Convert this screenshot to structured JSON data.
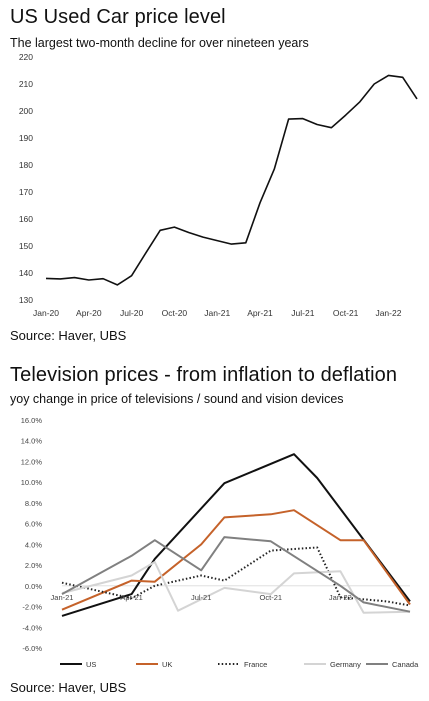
{
  "chart_data": [
    {
      "type": "line",
      "title": "US Used Car price level",
      "subtitle": "The largest two-month decline for over nineteen years",
      "source": "Source: Haver, UBS",
      "x_tick_labels": [
        "Jan-20",
        "Apr-20",
        "Jul-20",
        "Oct-20",
        "Jan-21",
        "Apr-21",
        "Jul-21",
        "Oct-21",
        "Jan-22"
      ],
      "y_tick_labels": [
        "130",
        "140",
        "150",
        "160",
        "170",
        "180",
        "190",
        "200",
        "210",
        "220"
      ],
      "ylim": [
        130,
        220
      ],
      "grid": false,
      "x": [
        "2020-01",
        "2020-02",
        "2020-03",
        "2020-04",
        "2020-05",
        "2020-06",
        "2020-07",
        "2020-08",
        "2020-09",
        "2020-10",
        "2020-11",
        "2020-12",
        "2021-01",
        "2021-02",
        "2021-03",
        "2021-04",
        "2021-05",
        "2021-06",
        "2021-07",
        "2021-08",
        "2021-09",
        "2021-10",
        "2021-11",
        "2021-12",
        "2022-01",
        "2022-02",
        "2022-03"
      ],
      "series": [
        {
          "color": "#111111",
          "values": [
            138.0,
            137.8,
            138.3,
            137.4,
            137.9,
            135.6,
            139.0,
            147.5,
            155.8,
            157.0,
            155.0,
            153.3,
            152.0,
            150.7,
            151.2,
            166.0,
            178.5,
            197.0,
            197.2,
            195.0,
            193.8,
            198.5,
            203.4,
            210.0,
            213.2,
            212.5,
            204.5
          ]
        }
      ]
    },
    {
      "type": "line",
      "title": "Television prices - from inflation to deflation",
      "subtitle": "yoy change in price of televisions / sound and vision devices",
      "source": "Source: Haver, UBS",
      "x_tick_labels": [
        "Jan-21",
        "Apr-21",
        "Jul-21",
        "Oct-21",
        "Jan-22"
      ],
      "y_tick_labels": [
        "-6.0%",
        "-4.0%",
        "-2.0%",
        "0.0%",
        "2.0%",
        "4.0%",
        "6.0%",
        "8.0%",
        "10.0%",
        "12.0%",
        "14.0%",
        "16.0%"
      ],
      "ylim": [
        -6,
        16
      ],
      "grid": false,
      "legend_position": "bottom",
      "x": [
        "2021-01",
        "2021-02",
        "2021-03",
        "2021-04",
        "2021-05",
        "2021-06",
        "2021-07",
        "2021-08",
        "2021-09",
        "2021-10",
        "2021-11",
        "2021-12",
        "2022-01",
        "2022-02",
        "2022-03",
        "2022-04"
      ],
      "series": [
        {
          "name": "US",
          "color": "#111111",
          "dash": "solid",
          "values": [
            -2.9,
            null,
            null,
            -0.8,
            2.6,
            null,
            null,
            9.9,
            null,
            null,
            12.7,
            10.4,
            null,
            null,
            null,
            -1.5
          ]
        },
        {
          "name": "UK",
          "color": "#c5622a",
          "dash": "solid",
          "values": [
            -2.3,
            null,
            null,
            0.5,
            0.4,
            null,
            4.0,
            6.6,
            null,
            6.9,
            7.3,
            null,
            4.4,
            4.4,
            null,
            -1.8
          ]
        },
        {
          "name": "France",
          "color": "#222222",
          "dash": "dotted",
          "values": [
            0.3,
            null,
            null,
            -1.2,
            0.0,
            null,
            1.0,
            0.5,
            null,
            3.4,
            null,
            3.7,
            -1.1,
            null,
            -1.5,
            -1.9
          ]
        },
        {
          "name": "Germany",
          "color": "#d4d4d4",
          "dash": "solid",
          "values": [
            -0.7,
            null,
            null,
            1.0,
            2.3,
            -2.4,
            null,
            -0.2,
            null,
            -0.8,
            1.2,
            null,
            1.4,
            -2.6,
            null,
            -2.5
          ]
        },
        {
          "name": "Canada",
          "color": "#808080",
          "dash": "solid",
          "values": [
            -0.8,
            null,
            null,
            2.9,
            4.4,
            null,
            1.5,
            4.7,
            null,
            4.3,
            null,
            null,
            0.0,
            -1.6,
            null,
            -2.5
          ]
        }
      ]
    }
  ]
}
